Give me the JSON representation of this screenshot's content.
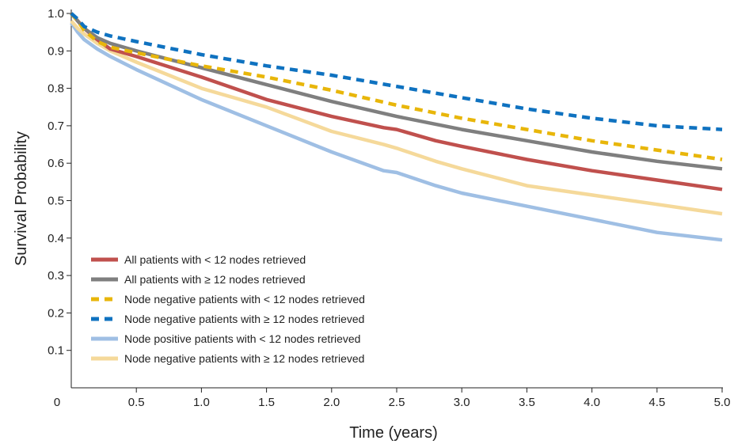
{
  "chart_data": {
    "type": "line",
    "title": "",
    "xlabel": "Time (years)",
    "ylabel": "Survival Probability",
    "xlim": [
      0,
      5.0
    ],
    "ylim": [
      0,
      1.0
    ],
    "x_ticks": [
      0.5,
      1.0,
      1.5,
      2.0,
      2.5,
      3.0,
      3.5,
      4.0,
      4.5,
      5.0
    ],
    "x_tick_labels": [
      "0.5",
      "1.0",
      "1.5",
      "2.0",
      "2.5",
      "3.0",
      "3.5",
      "4.0",
      "4.5",
      "5.0"
    ],
    "y_ticks": [
      0.1,
      0.2,
      0.3,
      0.4,
      0.5,
      0.6,
      0.7,
      0.8,
      0.9,
      1.0
    ],
    "y_tick_labels": [
      "0.1",
      "0.2",
      "0.3",
      "0.4",
      "0.5",
      "0.6",
      "0.7",
      "0.8",
      "0.9",
      "1.0"
    ],
    "origin_label": "0",
    "grid": false,
    "legend_position": "bottom-left",
    "series": [
      {
        "name": "All patients with < 12 nodes retrieved",
        "color": "#c0504d",
        "style": "solid",
        "x": [
          0,
          0.05,
          0.1,
          0.2,
          0.3,
          0.5,
          1.0,
          1.5,
          2.0,
          2.4,
          2.5,
          2.8,
          3.0,
          3.5,
          4.0,
          4.5,
          5.0
        ],
        "y": [
          1.0,
          0.98,
          0.96,
          0.93,
          0.905,
          0.885,
          0.83,
          0.77,
          0.725,
          0.695,
          0.69,
          0.66,
          0.645,
          0.61,
          0.58,
          0.555,
          0.53
        ]
      },
      {
        "name": "All patients with ≥ 12 nodes retrieved",
        "color": "#7f7f7f",
        "style": "solid",
        "x": [
          0,
          0.05,
          0.1,
          0.2,
          0.3,
          0.5,
          1.0,
          1.5,
          2.0,
          2.5,
          3.0,
          3.5,
          4.0,
          4.5,
          5.0
        ],
        "y": [
          1.0,
          0.98,
          0.96,
          0.935,
          0.92,
          0.9,
          0.855,
          0.81,
          0.765,
          0.725,
          0.69,
          0.66,
          0.63,
          0.605,
          0.585
        ]
      },
      {
        "name": "Node negative patients with < 12 nodes retrieved",
        "color": "#e8b60a",
        "style": "dashed",
        "x": [
          0,
          0.05,
          0.1,
          0.2,
          0.3,
          0.5,
          1.0,
          1.5,
          2.0,
          2.5,
          3.0,
          3.5,
          4.0,
          4.5,
          5.0
        ],
        "y": [
          1.0,
          0.98,
          0.955,
          0.925,
          0.91,
          0.895,
          0.86,
          0.83,
          0.795,
          0.755,
          0.72,
          0.69,
          0.66,
          0.635,
          0.61
        ]
      },
      {
        "name": "Node negative patients with ≥ 12 nodes retrieved",
        "color": "#0f72c0",
        "style": "dashed",
        "x": [
          0,
          0.05,
          0.1,
          0.2,
          0.3,
          0.5,
          1.0,
          1.5,
          2.0,
          2.5,
          3.0,
          3.5,
          4.0,
          4.5,
          5.0
        ],
        "y": [
          1.0,
          0.985,
          0.965,
          0.95,
          0.94,
          0.925,
          0.89,
          0.86,
          0.835,
          0.805,
          0.775,
          0.745,
          0.72,
          0.7,
          0.69
        ]
      },
      {
        "name": "Node positive patients with < 12 nodes retrieved",
        "color": "#9fbfe4",
        "style": "solid",
        "x": [
          0,
          0.05,
          0.1,
          0.2,
          0.3,
          0.5,
          1.0,
          1.5,
          2.0,
          2.4,
          2.5,
          2.8,
          3.0,
          3.5,
          4.0,
          4.5,
          5.0
        ],
        "y": [
          0.975,
          0.95,
          0.93,
          0.905,
          0.885,
          0.85,
          0.77,
          0.7,
          0.63,
          0.58,
          0.575,
          0.54,
          0.52,
          0.485,
          0.45,
          0.415,
          0.395
        ]
      },
      {
        "name": "Node negative patients with ≥ 12 nodes retrieved",
        "color": "#f5d99a",
        "style": "solid",
        "x": [
          0,
          0.05,
          0.1,
          0.2,
          0.3,
          0.5,
          1.0,
          1.5,
          2.0,
          2.4,
          2.5,
          2.8,
          3.0,
          3.5,
          4.0,
          4.5,
          5.0
        ],
        "y": [
          0.98,
          0.96,
          0.945,
          0.92,
          0.9,
          0.87,
          0.8,
          0.75,
          0.685,
          0.65,
          0.64,
          0.605,
          0.585,
          0.54,
          0.515,
          0.49,
          0.465
        ]
      }
    ]
  }
}
